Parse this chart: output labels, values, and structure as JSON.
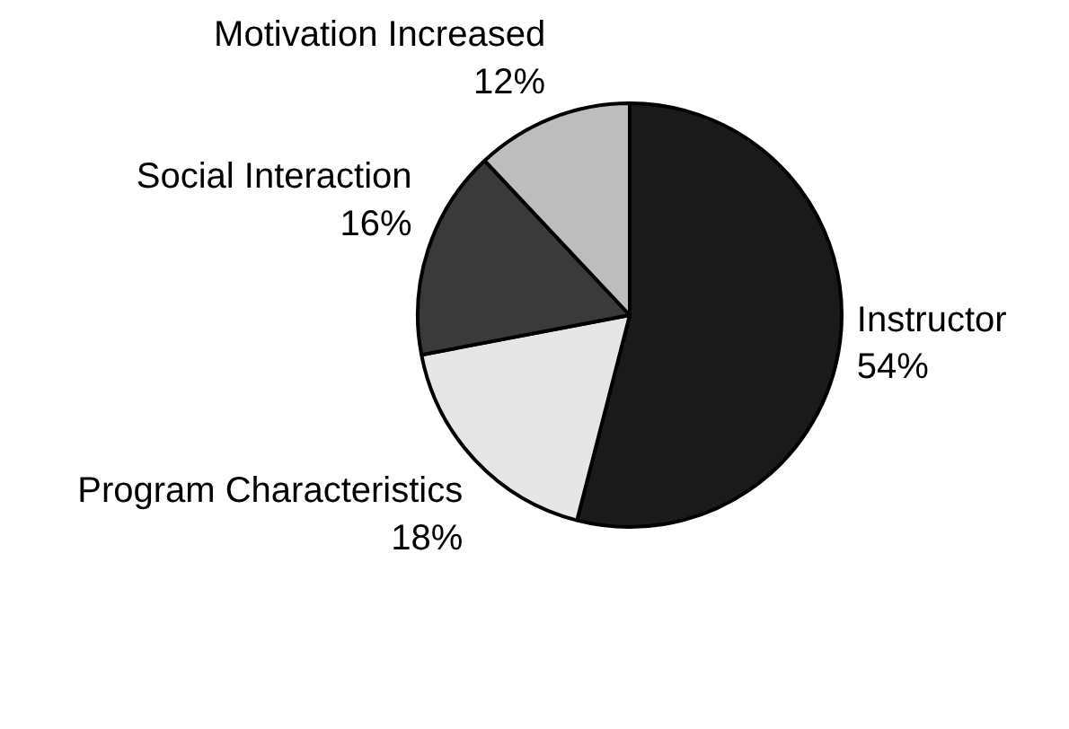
{
  "chart_data": {
    "type": "pie",
    "categories": [
      "Instructor",
      "Program Characteristics",
      "Social Interaction",
      "Motivation Increased"
    ],
    "values": [
      54,
      18,
      16,
      12
    ],
    "colors": [
      "#1a1a1a",
      "#e6e6e6",
      "#3a3a3a",
      "#bdbdbd"
    ],
    "value_labels": [
      "54%",
      "18%",
      "16%",
      "12%"
    ]
  }
}
